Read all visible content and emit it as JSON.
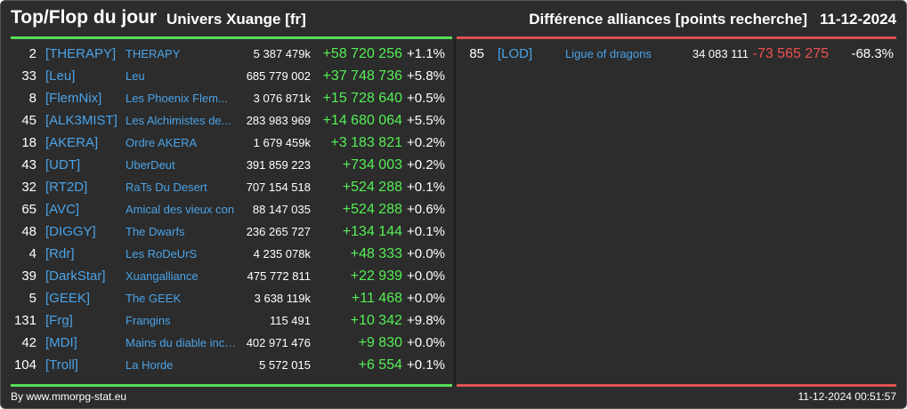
{
  "header": {
    "title": "Top/Flop du jour",
    "univers": "Univers Xuange [fr]",
    "difference": "Différence alliances [points recherche]",
    "date": "11-12-2024"
  },
  "colors": {
    "top_line": "#55dd55",
    "flop_line": "#e05050",
    "tag": "#4aa3e8",
    "positive": "#55ee55",
    "negative": "#ee5050"
  },
  "top": [
    {
      "rank": "2",
      "tag": "[THERAPY]",
      "name": "THERAPY",
      "points": "5 387 479k",
      "diff": "+58 720 256",
      "pct": "+1.1%"
    },
    {
      "rank": "33",
      "tag": "[Leu]",
      "name": "Leu",
      "points": "685 779 002",
      "diff": "+37 748 736",
      "pct": "+5.8%"
    },
    {
      "rank": "8",
      "tag": "[FlemNix]",
      "name": "Les Phoenix Flem...",
      "points": "3 076 871k",
      "diff": "+15 728 640",
      "pct": "+0.5%"
    },
    {
      "rank": "45",
      "tag": "[ALK3MIST]",
      "name": "Les Alchimistes de...",
      "points": "283 983 969",
      "diff": "+14 680 064",
      "pct": "+5.5%"
    },
    {
      "rank": "18",
      "tag": "[AKERA]",
      "name": "Ordre AKERA",
      "points": "1 679 459k",
      "diff": "+3 183 821",
      "pct": "+0.2%"
    },
    {
      "rank": "43",
      "tag": "[UDT]",
      "name": "UberDeut",
      "points": "391 859 223",
      "diff": "+734 003",
      "pct": "+0.2%"
    },
    {
      "rank": "32",
      "tag": "[RT2D]",
      "name": "RaTs Du Desert",
      "points": "707 154 518",
      "diff": "+524 288",
      "pct": "+0.1%"
    },
    {
      "rank": "65",
      "tag": "[AVC]",
      "name": "Amical des vieux con",
      "points": "88 147 035",
      "diff": "+524 288",
      "pct": "+0.6%"
    },
    {
      "rank": "48",
      "tag": "[DIGGY]",
      "name": "The Dwarfs",
      "points": "236 265 727",
      "diff": "+134 144",
      "pct": "+0.1%"
    },
    {
      "rank": "4",
      "tag": "[Rdr]",
      "name": "Les RoDeUrS",
      "points": "4 235 078k",
      "diff": "+48 333",
      "pct": "+0.0%"
    },
    {
      "rank": "39",
      "tag": "[DarkStar]",
      "name": "Xuangalliance",
      "points": "475 772 811",
      "diff": "+22 939",
      "pct": "+0.0%"
    },
    {
      "rank": "5",
      "tag": "[GEEK]",
      "name": "The GEEK",
      "points": "3 638 119k",
      "diff": "+11 468",
      "pct": "+0.0%"
    },
    {
      "rank": "131",
      "tag": "[Frg]",
      "name": "Frangins",
      "points": "115 491",
      "diff": "+10 342",
      "pct": "+9.8%"
    },
    {
      "rank": "42",
      "tag": "[MDI]",
      "name": "Mains du diable inco...",
      "points": "402 971 476",
      "diff": "+9 830",
      "pct": "+0.0%"
    },
    {
      "rank": "104",
      "tag": "[Troll]",
      "name": "La Horde",
      "points": "5 572 015",
      "diff": "+6 554",
      "pct": "+0.1%"
    }
  ],
  "flop": [
    {
      "rank": "85",
      "tag": "[LOD]",
      "name": "Ligue of dragons",
      "points": "34 083 111",
      "diff": "-73 565 275",
      "pct": "-68.3%"
    }
  ],
  "footer": {
    "source": "By www.mmorpg-stat.eu",
    "timestamp": "11-12-2024 00:51:57"
  }
}
